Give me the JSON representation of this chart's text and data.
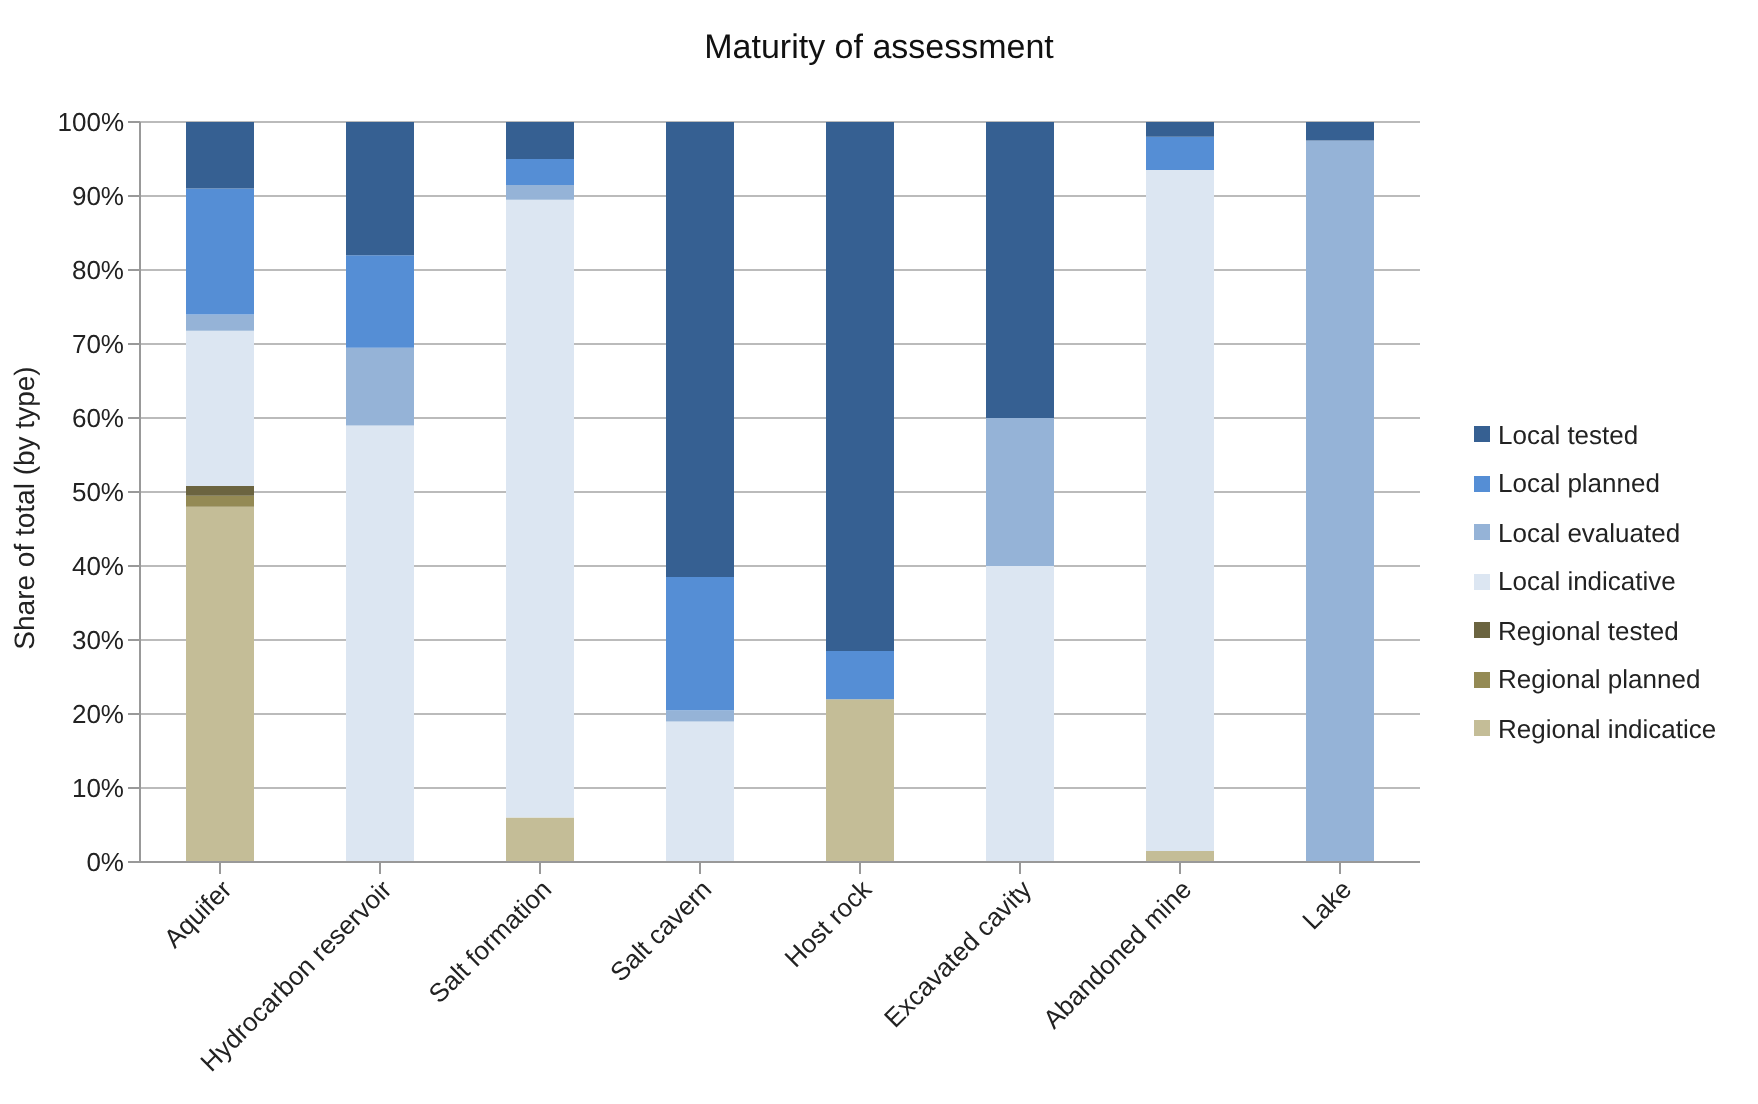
{
  "chart_data": {
    "type": "bar",
    "title": "Maturity of assessment",
    "ylabel": "Share of total (by type)",
    "stacked": true,
    "categories": [
      "Aquifer",
      "Hydrocarbon reservoir",
      "Salt formation",
      "Salt cavern",
      "Host rock",
      "Excavated cavity",
      "Abandoned mine",
      "Lake"
    ],
    "series": [
      {
        "name": "Regional indicatice",
        "color": "#c4bd97",
        "values": [
          48,
          0,
          6,
          0,
          22,
          0,
          1.5,
          0
        ]
      },
      {
        "name": "Regional planned",
        "color": "#948a54",
        "values": [
          1.5,
          0,
          0,
          0,
          0,
          0,
          0,
          0
        ]
      },
      {
        "name": "Regional tested",
        "color": "#6b6440",
        "values": [
          1.3,
          0,
          0,
          0,
          0,
          0,
          0,
          0
        ]
      },
      {
        "name": "Local indicative",
        "color": "#dce6f2",
        "values": [
          21,
          59,
          83.5,
          19,
          0,
          40,
          92,
          0
        ]
      },
      {
        "name": "Local evaluated",
        "color": "#95b3d7",
        "values": [
          2.2,
          10.5,
          2,
          1.5,
          0,
          20,
          0,
          97.5
        ]
      },
      {
        "name": "Local planned",
        "color": "#558ed5",
        "values": [
          17,
          12.5,
          3.5,
          18,
          6.5,
          0,
          4.5,
          0
        ]
      },
      {
        "name": "Local tested",
        "color": "#366092",
        "values": [
          9,
          18,
          5,
          61.5,
          71.5,
          40,
          2,
          2.5
        ]
      }
    ],
    "ylim": [
      0,
      100
    ],
    "yticks": [
      {
        "value": 0,
        "label": "0%"
      },
      {
        "value": 10,
        "label": "10%"
      },
      {
        "value": 20,
        "label": "20%"
      },
      {
        "value": 30,
        "label": "30%"
      },
      {
        "value": 40,
        "label": "40%"
      },
      {
        "value": 50,
        "label": "50%"
      },
      {
        "value": 60,
        "label": "60%"
      },
      {
        "value": 70,
        "label": "70%"
      },
      {
        "value": 80,
        "label": "80%"
      },
      {
        "value": 90,
        "label": "90%"
      },
      {
        "value": 100,
        "label": "100%"
      }
    ],
    "grid": "y",
    "legend": "right"
  }
}
